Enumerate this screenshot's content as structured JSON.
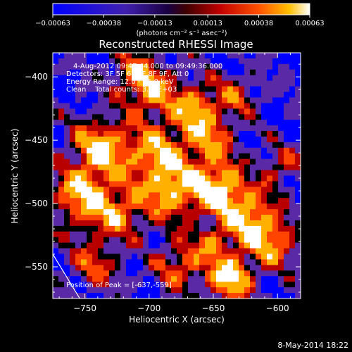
{
  "chart_data": {
    "type": "heatmap",
    "title": "Reconstructed RHESSI Image",
    "xlabel": "Heliocentric X (arcsec)",
    "ylabel": "Heliocentric Y (arcsec)",
    "xlim": [
      -775,
      -582
    ],
    "ylim": [
      -575,
      -381
    ],
    "x_ticks": [
      -750,
      -700,
      -650,
      -600
    ],
    "y_ticks": [
      -400,
      -450,
      -500,
      -550
    ],
    "x_tick_labels": [
      "−750",
      "−700",
      "−650",
      "−600"
    ],
    "y_tick_labels": [
      "−400",
      "−450",
      "−500",
      "−550"
    ],
    "colorbar": {
      "min": -0.00063,
      "max": 0.00063,
      "ticks": [
        -0.00063,
        -0.00038,
        -0.00013,
        0.00013,
        0.00038,
        0.00063
      ],
      "tick_labels": [
        "−0.00063",
        "−0.00038",
        "−0.00013",
        "0.00013",
        "0.00038",
        "0.00063"
      ],
      "unit_label": "(photons cm⁻² s⁻¹ asec⁻²)"
    },
    "annotations": [
      "4-Aug-2012 09:47:44.000 to 09:49:36.000",
      "Detectors: 3F 5F 6F 7F 8F 9F, Att 0",
      "Energy Range: 12.0 - 25.0 keV",
      "Clean    Total counts: 3.25E+03"
    ],
    "peak_label": "Position of Peak = [-637,-559]",
    "peak": [
      -637,
      -559
    ],
    "limb_segment": [
      [
        -775,
        -540
      ],
      [
        -754,
        -575
      ]
    ],
    "colors": [
      "#0000ff",
      "#5a2aa6",
      "#000000",
      "#b80000",
      "#ff4400",
      "#ffb000",
      "#ffffff"
    ]
  },
  "footer": {
    "date": "8-May-2014 18:22"
  }
}
